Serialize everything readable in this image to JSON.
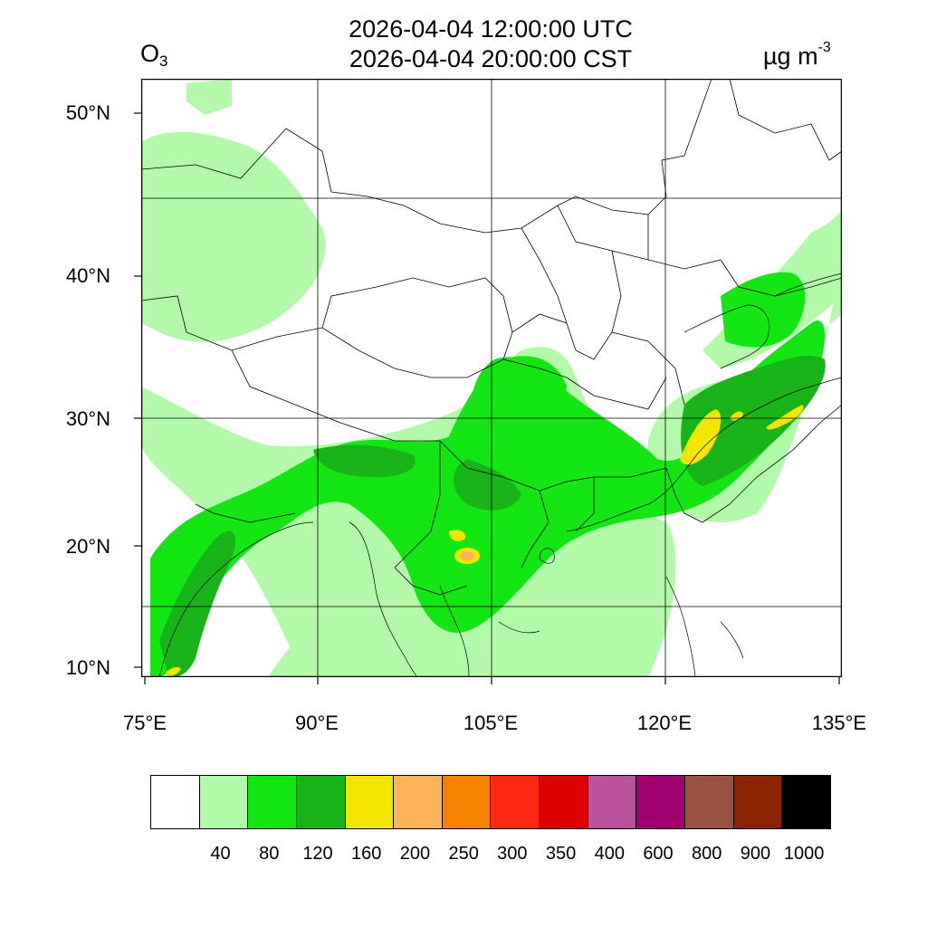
{
  "title": {
    "line1": "2026-04-04 12:00:00 UTC",
    "line2": "2026-04-04 20:00:00 CST"
  },
  "variable": {
    "name": "O",
    "subscript": "3"
  },
  "unit": {
    "base": "µg m",
    "exponent": "-3"
  },
  "map": {
    "lat_ticks": [
      "50°N",
      "40°N",
      "30°N",
      "20°N",
      "10°N"
    ],
    "lon_ticks": [
      "75°E",
      "90°E",
      "105°E",
      "120°E",
      "135°E"
    ],
    "lon_range_deg": [
      75,
      135
    ],
    "lat_range_deg": [
      9,
      53
    ],
    "ocean_color": "#ffffff",
    "border_color": "#000000"
  },
  "legend": {
    "colors": [
      "#ffffff",
      "#b3f9aa",
      "#13e613",
      "#18b318",
      "#f2e600",
      "#ffb45a",
      "#f78200",
      "#ff2814",
      "#dc0000",
      "#b9519d",
      "#a0006e",
      "#9a5341",
      "#8b2300",
      "#000000"
    ],
    "labels": [
      "40",
      "80",
      "120",
      "160",
      "200",
      "250",
      "300",
      "350",
      "400",
      "600",
      "800",
      "900",
      "1000"
    ]
  }
}
